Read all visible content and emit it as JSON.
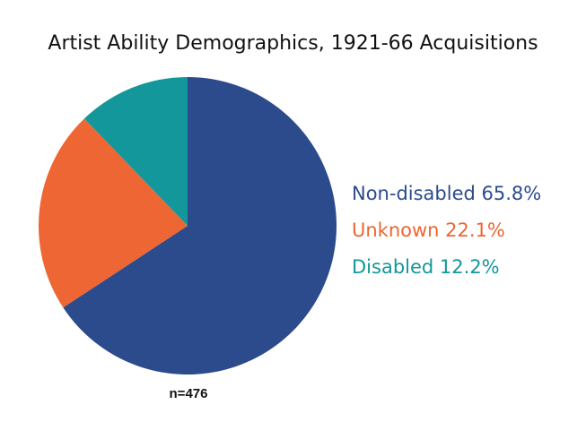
{
  "chart_data": {
    "type": "pie",
    "title": "Artist Ability Demographics, 1921-66 Acquisitions",
    "slices": [
      {
        "label": "Non-disabled",
        "value": 65.8,
        "display": "65.8%",
        "color": "#2c4b8c"
      },
      {
        "label": "Unknown",
        "value": 22.1,
        "display": "22.1%",
        "color": "#ee6633"
      },
      {
        "label": "Disabled",
        "value": 12.2,
        "display": "12.2%",
        "color": "#14979a"
      }
    ],
    "start": "top",
    "direction": "clockwise",
    "legend_position": "right",
    "annotation": "n=476"
  }
}
